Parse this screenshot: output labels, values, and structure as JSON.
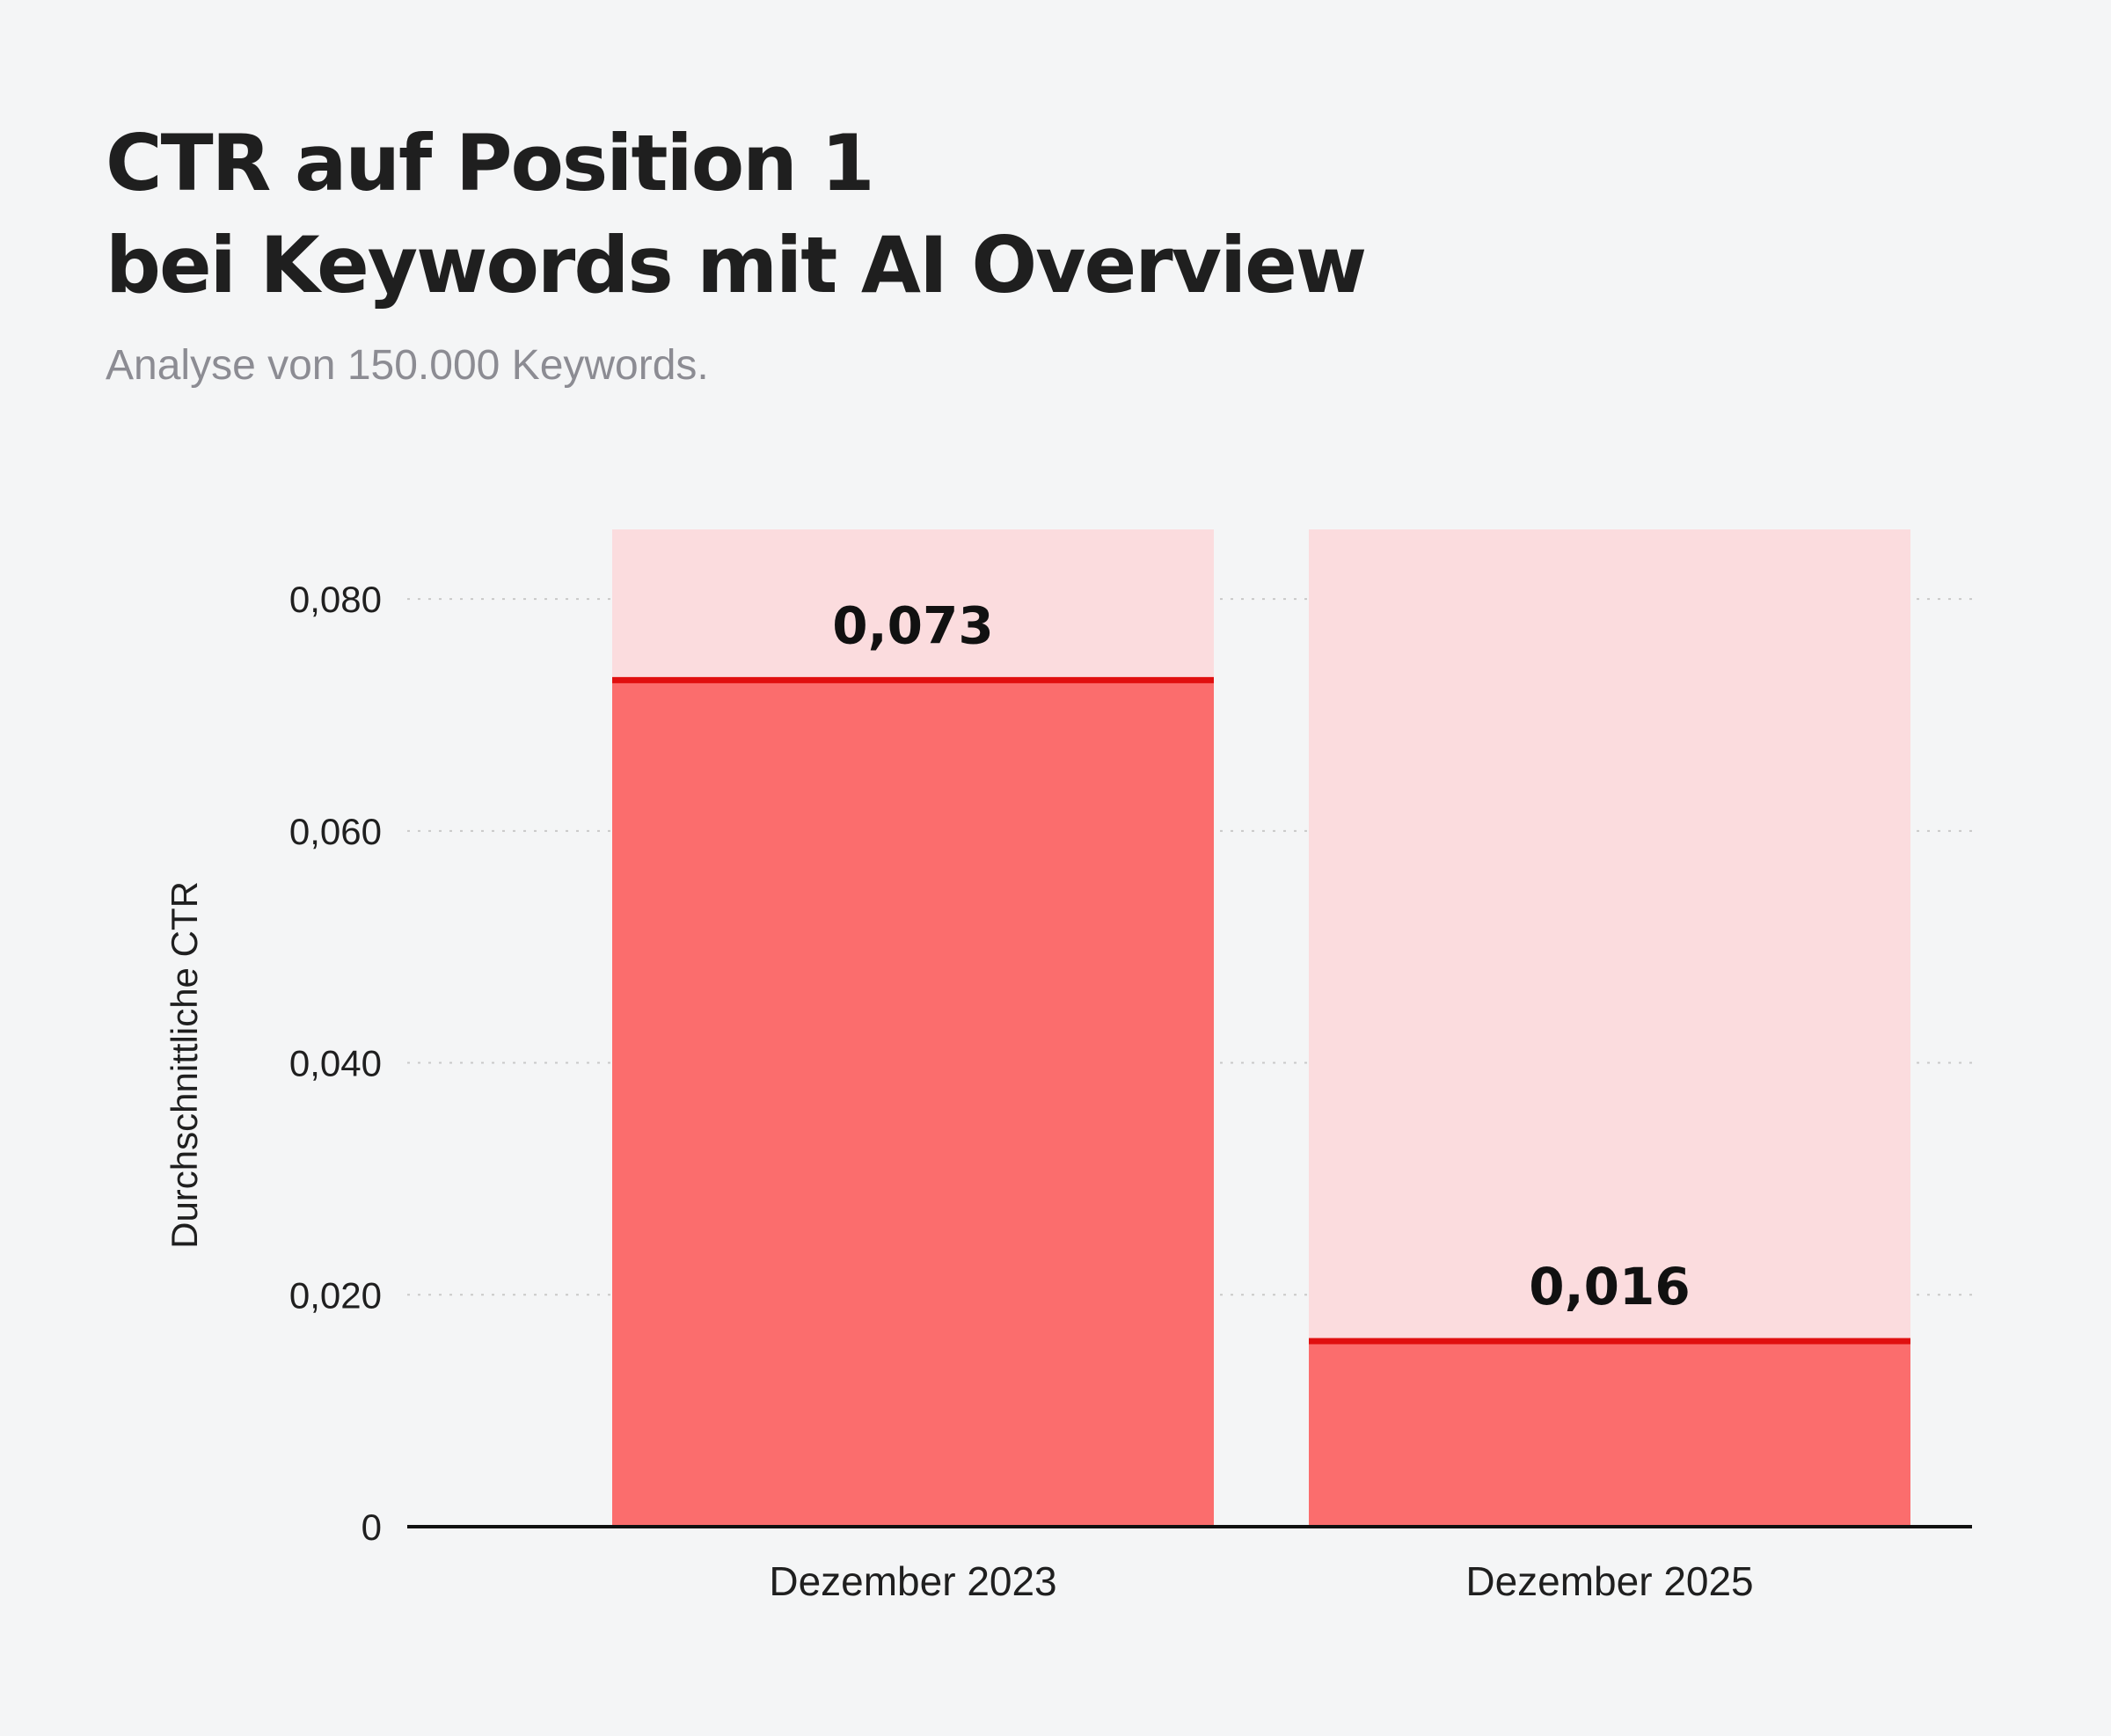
{
  "title": {
    "line1": "CTR auf Position 1",
    "line2": "bei Keywords mit AI Overview"
  },
  "subtitle": "Analyse von 150.000 Keywords.",
  "colors": {
    "background": "#f4f5f6",
    "bar_fill": "#fb6d6d",
    "bar_track": "#fbdcde",
    "bar_top_line": "#e00f0f",
    "grid": "#c9c9c9",
    "axis": "#111111",
    "text": "#1f1f1f"
  },
  "chart_data": {
    "type": "bar",
    "title": "CTR auf Position 1 bei Keywords mit AI Overview",
    "subtitle": "Analyse von 150.000 Keywords.",
    "xlabel": "",
    "ylabel": "Durchschnittliche CTR",
    "categories": [
      "Dezember 2023",
      "Dezember 2025"
    ],
    "values": [
      0.073,
      0.016
    ],
    "value_labels": [
      "0,073",
      "0,016"
    ],
    "ylim": [
      0,
      0.086
    ],
    "yticks": [
      0,
      0.02,
      0.04,
      0.06,
      0.08
    ],
    "ytick_labels": [
      "0",
      "0,020",
      "0,040",
      "0,060",
      "0,080"
    ],
    "grid": true,
    "grid_style": "dotted",
    "legend": "none"
  }
}
